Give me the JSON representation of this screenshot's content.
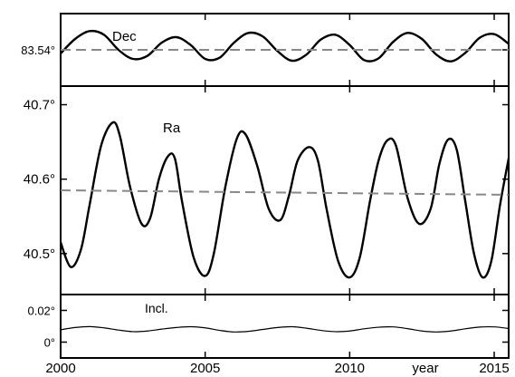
{
  "chart_data": [
    {
      "type": "line",
      "panel": "top",
      "xlim": [
        2000,
        2015.5
      ],
      "ylim": [
        83.534,
        83.546
      ],
      "yticks": [
        {
          "value": 83.54,
          "label": "83.54°"
        }
      ],
      "series": [
        {
          "name": "Dec",
          "style": "solid",
          "x": [
            2000.0,
            2000.5,
            2001.0,
            2001.5,
            2002.0,
            2002.5,
            2003.0,
            2003.5,
            2004.0,
            2004.5,
            2005.0,
            2005.5,
            2006.0,
            2006.5,
            2007.0,
            2007.5,
            2008.0,
            2008.5,
            2009.0,
            2009.5,
            2010.0,
            2010.5,
            2011.0,
            2011.5,
            2012.0,
            2012.5,
            2013.0,
            2013.5,
            2014.0,
            2014.5,
            2015.0,
            2015.5
          ],
          "values": [
            83.5394,
            83.5418,
            83.5431,
            83.5425,
            83.54,
            83.5385,
            83.539,
            83.5412,
            83.5421,
            83.5408,
            83.5385,
            83.5387,
            83.5412,
            83.5428,
            83.5422,
            83.5398,
            83.5382,
            83.5392,
            83.5417,
            83.5425,
            83.5408,
            83.5383,
            83.5386,
            83.5413,
            83.5428,
            83.5418,
            83.5392,
            83.5381,
            83.5395,
            83.542,
            83.5426,
            83.541
          ]
        },
        {
          "name": "",
          "style": "dashed",
          "x": [
            2000,
            2015.5
          ],
          "values": [
            83.54,
            83.54
          ]
        }
      ]
    },
    {
      "type": "line",
      "panel": "middle",
      "xlim": [
        2000,
        2015.5
      ],
      "ylim": [
        40.445,
        40.725
      ],
      "yticks": [
        {
          "value": 40.5,
          "label": "40.5°"
        },
        {
          "value": 40.6,
          "label": "40.6°"
        },
        {
          "value": 40.7,
          "label": "40.7°"
        }
      ],
      "series": [
        {
          "name": "Ra",
          "style": "solid",
          "x": [
            2000.0,
            2000.35,
            2000.7,
            2001.0,
            2001.4,
            2001.8,
            2002.05,
            2002.4,
            2002.8,
            2003.1,
            2003.4,
            2003.7,
            2003.95,
            2004.2,
            2004.6,
            2005.0,
            2005.3,
            2005.7,
            2006.1,
            2006.4,
            2006.8,
            2007.2,
            2007.6,
            2007.9,
            2008.2,
            2008.6,
            2008.9,
            2009.2,
            2009.6,
            2010.0,
            2010.35,
            2010.7,
            2011.0,
            2011.3,
            2011.6,
            2012.0,
            2012.4,
            2012.8,
            2013.1,
            2013.4,
            2013.7,
            2014.0,
            2014.3,
            2014.6,
            2014.9,
            2015.2,
            2015.5
          ],
          "values": [
            40.515,
            40.482,
            40.505,
            40.565,
            40.645,
            40.676,
            40.658,
            40.59,
            40.54,
            40.548,
            40.6,
            40.63,
            40.628,
            40.57,
            40.495,
            40.47,
            40.5,
            40.59,
            40.655,
            40.66,
            40.618,
            40.56,
            40.545,
            40.578,
            40.625,
            40.643,
            40.625,
            40.56,
            40.49,
            40.468,
            40.495,
            40.57,
            40.625,
            40.652,
            40.645,
            40.575,
            40.54,
            40.56,
            40.62,
            40.653,
            40.64,
            40.57,
            40.5,
            40.468,
            40.49,
            40.565,
            40.628
          ]
        },
        {
          "name": "",
          "style": "dashed",
          "x": [
            2000,
            2015.5
          ],
          "values": [
            40.585,
            40.579
          ]
        }
      ]
    },
    {
      "type": "line",
      "panel": "bottom",
      "xlim": [
        2000,
        2015.5
      ],
      "ylim": [
        -0.01,
        0.03
      ],
      "yticks": [
        {
          "value": 0.02,
          "label": "0.02°"
        },
        {
          "value": 0,
          "label": "0°"
        }
      ],
      "series": [
        {
          "name": "Incl.",
          "style": "solid",
          "x": [
            2000.0,
            2000.5,
            2001.0,
            2001.5,
            2002.0,
            2002.5,
            2003.0,
            2003.5,
            2004.0,
            2004.5,
            2005.0,
            2005.5,
            2006.0,
            2006.5,
            2007.0,
            2007.5,
            2008.0,
            2008.5,
            2009.0,
            2009.5,
            2010.0,
            2010.5,
            2011.0,
            2011.5,
            2012.0,
            2012.5,
            2013.0,
            2013.5,
            2014.0,
            2014.5,
            2015.0,
            2015.5
          ],
          "values": [
            0.0078,
            0.0092,
            0.0098,
            0.009,
            0.0076,
            0.0066,
            0.007,
            0.0082,
            0.0092,
            0.0097,
            0.009,
            0.0074,
            0.0064,
            0.0068,
            0.008,
            0.0092,
            0.0097,
            0.0088,
            0.0074,
            0.0066,
            0.007,
            0.0084,
            0.0094,
            0.0096,
            0.0085,
            0.007,
            0.0064,
            0.007,
            0.0084,
            0.0095,
            0.0096,
            0.0086
          ]
        }
      ]
    }
  ],
  "x_axis": {
    "range": [
      2000,
      2015.5
    ],
    "ticks": [
      {
        "value": 2000,
        "label": "2000"
      },
      {
        "value": 2005,
        "label": "2005"
      },
      {
        "value": 2010,
        "label": "2010"
      },
      {
        "value": 2015,
        "label": "2015"
      }
    ],
    "unit_label": "year",
    "unit_label_between": [
      2010,
      2015
    ]
  }
}
